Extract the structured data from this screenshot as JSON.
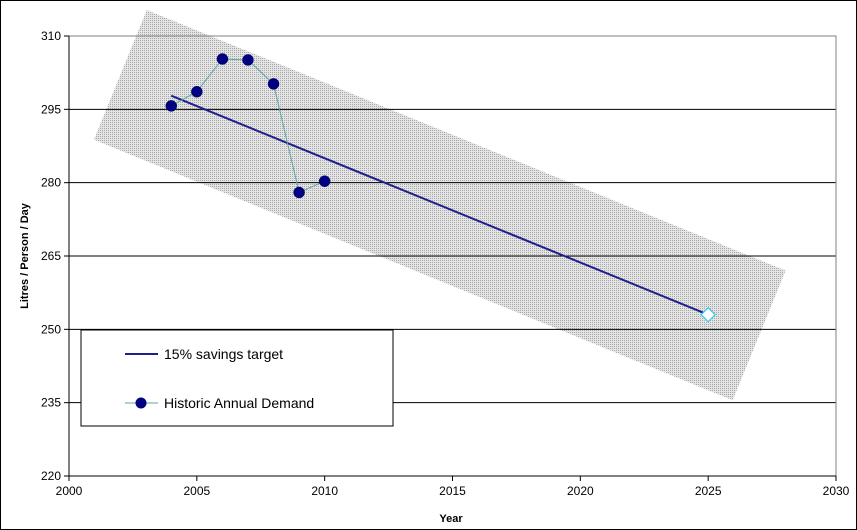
{
  "chart_data": {
    "type": "line",
    "xlabel": "Year",
    "ylabel": "Litres / Person / Day",
    "xlim": [
      2000,
      2030
    ],
    "ylim": [
      220,
      310
    ],
    "x_ticks": [
      2000,
      2005,
      2010,
      2015,
      2020,
      2025,
      2030
    ],
    "y_ticks": [
      220,
      235,
      250,
      265,
      280,
      295,
      310
    ],
    "grid": "horizontal",
    "legend_position": "lower-left",
    "series": [
      {
        "name": "15% savings target",
        "style": "line",
        "color": "#1f1f8c",
        "x": [
          2004,
          2025
        ],
        "y": [
          297.8,
          253
        ]
      },
      {
        "name": "Historic Annual Demand",
        "style": "line-markers",
        "color": "#000080",
        "line_color": "#5aa7a7",
        "x": [
          2004,
          2005,
          2006,
          2007,
          2008,
          2009,
          2010
        ],
        "y": [
          295.7,
          298.6,
          305.3,
          305.1,
          300.2,
          278,
          280.3
        ]
      }
    ],
    "annotations": [
      {
        "type": "hollow-diamond-marker",
        "x": 2025,
        "y": 253,
        "color": "#33ccee"
      },
      {
        "type": "shaded-band",
        "color": "#c8c8c8",
        "pattern": "dotted"
      }
    ]
  }
}
